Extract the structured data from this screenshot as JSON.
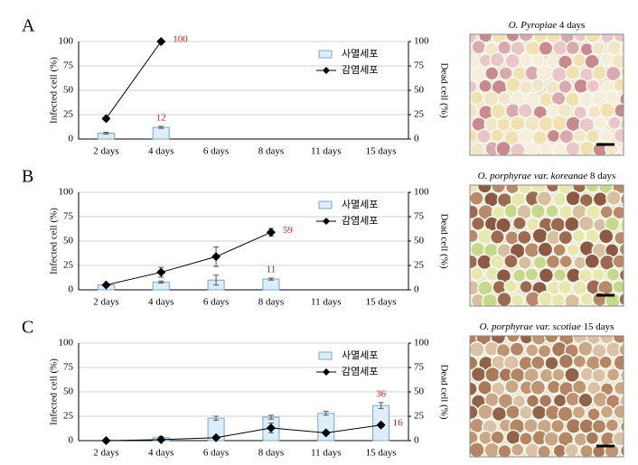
{
  "chart_data": [
    {
      "type": "bar_line",
      "panel": "A",
      "image_caption": {
        "species": "O. Pyropiae",
        "time": "4 days"
      },
      "ylabel": "Infected cell (%)",
      "y2label": "Dead cell (%)",
      "categories": [
        "2 days",
        "4 days",
        "6 days",
        "8 days",
        "11 days",
        "15 days"
      ],
      "ylim": [
        0,
        100
      ],
      "yticks": [
        0,
        25,
        50,
        75,
        100
      ],
      "y2lim": [
        0,
        100
      ],
      "y2ticks": [
        0,
        25,
        50,
        75,
        100
      ],
      "grid": true,
      "series": [
        {
          "name": "사멸세포",
          "kind": "bar",
          "axis": "y2",
          "color": "#ddeefa",
          "values": [
            6,
            12,
            null,
            null,
            null,
            null
          ],
          "errors": [
            1,
            1,
            null,
            null,
            null,
            null
          ],
          "value_labels": [
            null,
            "12",
            null,
            null,
            null,
            null
          ]
        },
        {
          "name": "감염세포",
          "kind": "line",
          "axis": "y",
          "color": "#000000",
          "values": [
            21,
            100,
            null,
            null,
            null,
            null
          ],
          "errors": [
            1,
            0,
            null,
            null,
            null,
            null
          ],
          "value_labels": [
            null,
            "100",
            null,
            null,
            null,
            null
          ]
        }
      ]
    },
    {
      "type": "bar_line",
      "panel": "B",
      "image_caption": {
        "species": "O. porphyrae var. koreanae",
        "time": "8 days"
      },
      "ylabel": "Infected cell (%)",
      "y2label": "Dead cell (%)",
      "categories": [
        "2 days",
        "4 days",
        "6 days",
        "8 days",
        "11 days",
        "15 days"
      ],
      "ylim": [
        0,
        100
      ],
      "yticks": [
        0,
        25,
        50,
        75,
        100
      ],
      "y2lim": [
        0,
        100
      ],
      "y2ticks": [
        0,
        25,
        50,
        75,
        100
      ],
      "grid": true,
      "series": [
        {
          "name": "사멸세포",
          "kind": "bar",
          "axis": "y2",
          "color": "#ddeefa",
          "values": [
            5,
            8,
            10,
            11,
            null,
            null
          ],
          "errors": [
            1,
            1,
            5,
            1,
            null,
            null
          ],
          "value_labels": [
            null,
            null,
            null,
            "11",
            null,
            null
          ]
        },
        {
          "name": "감염세포",
          "kind": "line",
          "axis": "y",
          "color": "#000000",
          "values": [
            5,
            18,
            34,
            59,
            null,
            null
          ],
          "errors": [
            1,
            5,
            10,
            4,
            null,
            null
          ],
          "value_labels": [
            null,
            null,
            null,
            "59",
            null,
            null
          ]
        }
      ]
    },
    {
      "type": "bar_line",
      "panel": "C",
      "image_caption": {
        "species": "O. porphyrae var. scotiae",
        "time": "15 days"
      },
      "ylabel": "Infected cell (%)",
      "y2label": "Dead cell (%)",
      "categories": [
        "2 days",
        "4 days",
        "6 days",
        "8 days",
        "11 days",
        "15 days"
      ],
      "ylim": [
        0,
        100
      ],
      "yticks": [
        0,
        25,
        50,
        75,
        100
      ],
      "y2lim": [
        0,
        100
      ],
      "y2ticks": [
        0,
        25,
        50,
        75,
        100
      ],
      "grid": true,
      "series": [
        {
          "name": "사멸세포",
          "kind": "bar",
          "axis": "y2",
          "color": "#ddeefa",
          "values": [
            0,
            3,
            23,
            24,
            28,
            36
          ],
          "errors": [
            0,
            1,
            2,
            2,
            2,
            3
          ],
          "value_labels": [
            null,
            null,
            null,
            null,
            null,
            "36"
          ]
        },
        {
          "name": "감염세포",
          "kind": "line",
          "axis": "y",
          "color": "#000000",
          "values": [
            0,
            1,
            3,
            13,
            8,
            16
          ],
          "errors": [
            0,
            1,
            1,
            5,
            2,
            2
          ],
          "value_labels": [
            null,
            null,
            null,
            null,
            null,
            "16"
          ]
        }
      ]
    }
  ]
}
